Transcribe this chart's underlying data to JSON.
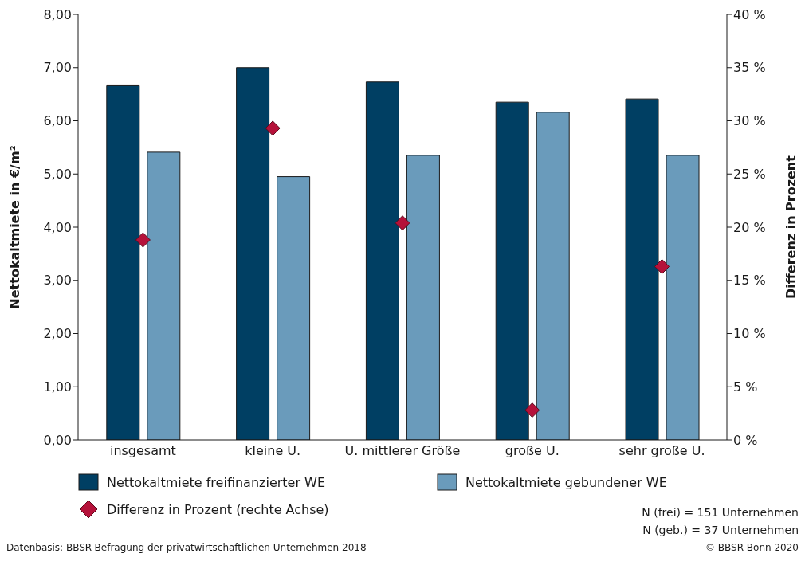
{
  "chart_data": {
    "type": "bar",
    "categories": [
      "insgesamt",
      "kleine U.",
      "U. mittlerer Größe",
      "große U.",
      "sehr große U."
    ],
    "ylabel": "Nettokaltmiete in €/m²",
    "y2label": "Differenz in Prozent",
    "ylim": [
      0,
      8
    ],
    "yticks": [
      {
        "value": 0,
        "label": "0,00"
      },
      {
        "value": 1,
        "label": "1,00"
      },
      {
        "value": 2,
        "label": "2,00"
      },
      {
        "value": 3,
        "label": "3,00"
      },
      {
        "value": 4,
        "label": "4,00"
      },
      {
        "value": 5,
        "label": "5,00"
      },
      {
        "value": 6,
        "label": "6,00"
      },
      {
        "value": 7,
        "label": "7,00"
      },
      {
        "value": 8,
        "label": "8,00"
      }
    ],
    "y2lim": [
      0,
      40
    ],
    "y2ticks": [
      {
        "value": 0,
        "label": "0 %"
      },
      {
        "value": 5,
        "label": "5 %"
      },
      {
        "value": 10,
        "label": "10 %"
      },
      {
        "value": 15,
        "label": "15 %"
      },
      {
        "value": 20,
        "label": "20 %"
      },
      {
        "value": 25,
        "label": "25 %"
      },
      {
        "value": 30,
        "label": "30 %"
      },
      {
        "value": 35,
        "label": "35 %"
      },
      {
        "value": 40,
        "label": "40 %"
      }
    ],
    "series": [
      {
        "name": "Nettokaltmiete freifinanzierter WE",
        "color": "#003f63",
        "values": [
          6.66,
          7.0,
          6.73,
          6.35,
          6.41
        ]
      },
      {
        "name": "Nettokaltmiete gebundener WE",
        "color": "#6a9bbb",
        "values": [
          5.41,
          4.95,
          5.35,
          6.16,
          5.35
        ]
      },
      {
        "name": "Differenz in Prozent (rechte Achse)",
        "type": "scatter",
        "axis": "y2",
        "marker": "diamond",
        "color": "#b5123a",
        "values": [
          18.8,
          29.3,
          20.4,
          2.8,
          16.3
        ]
      }
    ],
    "grid": false,
    "legend": "bottom",
    "annotations": [
      "N (frei) = 151 Unternehmen",
      "N (geb.) = 37 Unternehmen",
      "Datenbasis: BBSR-Befragung der privatwirtschaftlichen Unternehmen 2018",
      "© BBSR Bonn 2020"
    ]
  }
}
